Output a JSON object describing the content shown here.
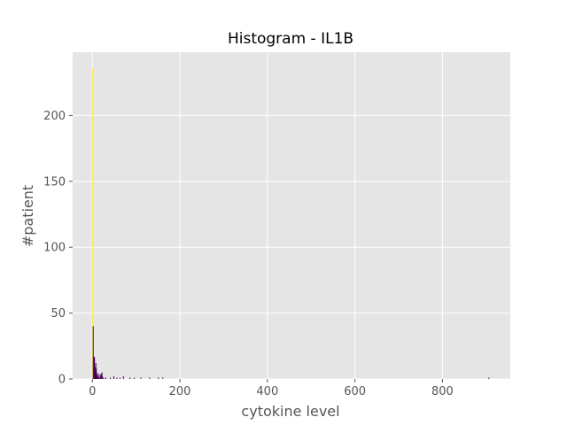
{
  "chart_data": {
    "type": "bar",
    "title": "Histogram - IL1B",
    "xlabel": "cytokine level",
    "ylabel": "#patient",
    "xlim": [
      -45,
      955
    ],
    "ylim": [
      0,
      248
    ],
    "x_ticks": [
      0,
      200,
      400,
      600,
      800
    ],
    "y_ticks": [
      0,
      50,
      100,
      150,
      200
    ],
    "grid": true,
    "background": "#e5e5e5",
    "grid_color": "#ffffff",
    "tick_color": "#555555",
    "bins": [
      {
        "x": 0,
        "width": 1,
        "count": 236,
        "color": "#fde725"
      },
      {
        "x": 1,
        "width": 1,
        "count": 40,
        "color": "#440154"
      },
      {
        "x": 3,
        "width": 1,
        "count": 17,
        "color": "#440154"
      },
      {
        "x": 4,
        "width": 1,
        "count": 16,
        "color": "#440154"
      },
      {
        "x": 5,
        "width": 1,
        "count": 6,
        "color": "#440154"
      },
      {
        "x": 6,
        "width": 1,
        "count": 9,
        "color": "#440154"
      },
      {
        "x": 7,
        "width": 1,
        "count": 12,
        "color": "#440154"
      },
      {
        "x": 8,
        "width": 1,
        "count": 8,
        "color": "#440154"
      },
      {
        "x": 9,
        "width": 1,
        "count": 5,
        "color": "#440154"
      },
      {
        "x": 10,
        "width": 1,
        "count": 3,
        "color": "#440154"
      },
      {
        "x": 11,
        "width": 1,
        "count": 2,
        "color": "#440154"
      },
      {
        "x": 13,
        "width": 1,
        "count": 4,
        "color": "#440154"
      },
      {
        "x": 15,
        "width": 1,
        "count": 1,
        "color": "#440154"
      },
      {
        "x": 17,
        "width": 1,
        "count": 3,
        "color": "#440154"
      },
      {
        "x": 19,
        "width": 1,
        "count": 4,
        "color": "#440154"
      },
      {
        "x": 21,
        "width": 1,
        "count": 5,
        "color": "#440154"
      },
      {
        "x": 22,
        "width": 1,
        "count": 2,
        "color": "#440154"
      },
      {
        "x": 25,
        "width": 1,
        "count": 1,
        "color": "#440154"
      },
      {
        "x": 30,
        "width": 1,
        "count": 1,
        "color": "#440154"
      },
      {
        "x": 40,
        "width": 1,
        "count": 1,
        "color": "#440154"
      },
      {
        "x": 48,
        "width": 1,
        "count": 2,
        "color": "#440154"
      },
      {
        "x": 55,
        "width": 1,
        "count": 1,
        "color": "#440154"
      },
      {
        "x": 62,
        "width": 1,
        "count": 1,
        "color": "#440154"
      },
      {
        "x": 70,
        "width": 1,
        "count": 2,
        "color": "#440154"
      },
      {
        "x": 85,
        "width": 1,
        "count": 1,
        "color": "#440154"
      },
      {
        "x": 95,
        "width": 1,
        "count": 1,
        "color": "#440154"
      },
      {
        "x": 110,
        "width": 1,
        "count": 1,
        "color": "#440154"
      },
      {
        "x": 130,
        "width": 1,
        "count": 1,
        "color": "#440154"
      },
      {
        "x": 150,
        "width": 1,
        "count": 1,
        "color": "#440154"
      },
      {
        "x": 160,
        "width": 1,
        "count": 1,
        "color": "#440154"
      },
      {
        "x": 905,
        "width": 1,
        "count": 1,
        "color": "#440154"
      }
    ]
  }
}
